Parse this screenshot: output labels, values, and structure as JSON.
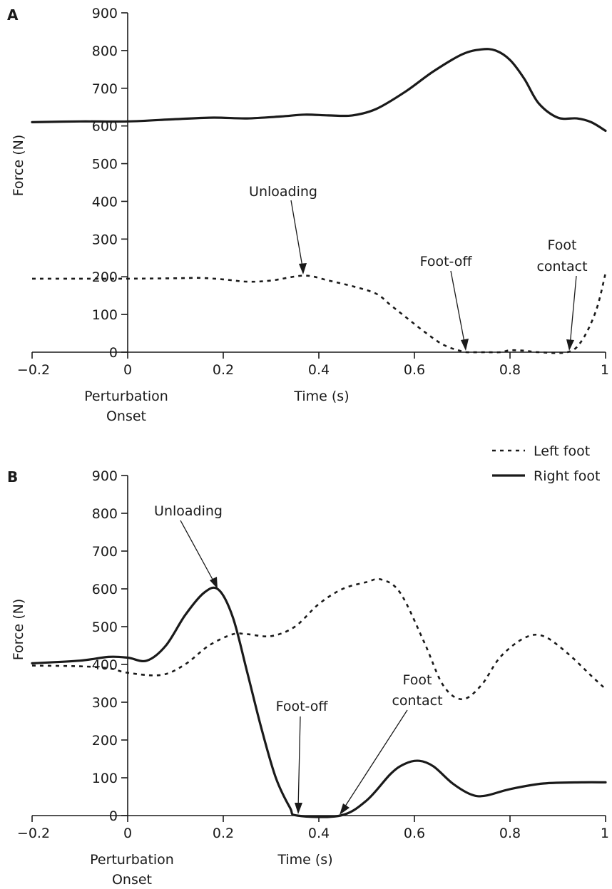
{
  "legend": {
    "left_label": "Left foot",
    "right_label": "Right foot"
  },
  "chart_data": [
    {
      "type": "line",
      "panel_label": "A",
      "xlabel": "Time (s)",
      "ylabel": "Force (N)",
      "onset_label_1": "Perturbation",
      "onset_label_2": "Onset",
      "xlim": [
        -0.2,
        1
      ],
      "ylim": [
        0,
        900
      ],
      "x_ticks": [
        -0.2,
        0,
        0.2,
        0.4,
        0.6,
        0.8,
        1
      ],
      "x_tick_labels": [
        "−0.2",
        "0",
        "0.2",
        "0.4",
        "0.6",
        "0.8",
        "1"
      ],
      "y_ticks": [
        0,
        100,
        200,
        300,
        400,
        500,
        600,
        700,
        800,
        900
      ],
      "y_tick_labels": [
        "0",
        "100",
        "200",
        "300",
        "400",
        "500",
        "600",
        "700",
        "800",
        "900"
      ],
      "series": [
        {
          "name": "Right foot",
          "style": "solid",
          "x": [
            -0.2,
            -0.1,
            0.0,
            0.1,
            0.18,
            0.25,
            0.32,
            0.37,
            0.42,
            0.47,
            0.52,
            0.58,
            0.64,
            0.7,
            0.74,
            0.77,
            0.8,
            0.83,
            0.86,
            0.9,
            0.94,
            0.97,
            1.0
          ],
          "y": [
            610,
            612,
            612,
            618,
            622,
            620,
            625,
            630,
            628,
            628,
            645,
            690,
            745,
            790,
            803,
            800,
            775,
            725,
            660,
            622,
            620,
            610,
            587
          ]
        },
        {
          "name": "Left foot",
          "style": "dashed",
          "x": [
            -0.2,
            -0.1,
            0.0,
            0.1,
            0.15,
            0.2,
            0.25,
            0.3,
            0.37,
            0.42,
            0.47,
            0.52,
            0.55,
            0.58,
            0.62,
            0.66,
            0.7,
            0.72,
            0.75,
            0.78,
            0.8,
            0.83,
            0.86,
            0.92,
            0.95,
            0.98,
            1.0
          ],
          "y": [
            195,
            195,
            195,
            196,
            197,
            193,
            187,
            190,
            203,
            190,
            175,
            155,
            125,
            95,
            55,
            20,
            2,
            0,
            0,
            0,
            5,
            4,
            0,
            0,
            30,
            110,
            210
          ]
        }
      ],
      "annotations": [
        {
          "text": "Unloading",
          "x": 0.37,
          "y": 200
        },
        {
          "text": "Foot-off",
          "x": 0.71,
          "y": 0
        },
        {
          "text": "Foot",
          "x": 0.925,
          "y": 0
        },
        {
          "text": "contact",
          "x": 0.925,
          "y": 0
        }
      ]
    },
    {
      "type": "line",
      "panel_label": "B",
      "xlabel": "Time (s)",
      "ylabel": "Force (N)",
      "onset_label_1": "Perturbation",
      "onset_label_2": "Onset",
      "xlim": [
        -0.2,
        1
      ],
      "ylim": [
        0,
        900
      ],
      "x_ticks": [
        -0.2,
        0,
        0.2,
        0.4,
        0.6,
        0.8,
        1
      ],
      "x_tick_labels": [
        "−0.2",
        "0",
        "0.2",
        "0.4",
        "0.6",
        "0.8",
        "1"
      ],
      "y_ticks": [
        0,
        100,
        200,
        300,
        400,
        500,
        600,
        700,
        800,
        900
      ],
      "y_tick_labels": [
        "0",
        "100",
        "200",
        "300",
        "400",
        "500",
        "600",
        "700",
        "800",
        "900"
      ],
      "series": [
        {
          "name": "Right foot",
          "style": "solid",
          "x": [
            -0.2,
            -0.1,
            -0.04,
            0.0,
            0.04,
            0.08,
            0.12,
            0.16,
            0.19,
            0.22,
            0.25,
            0.28,
            0.31,
            0.34,
            0.355,
            0.445,
            0.5,
            0.55,
            0.58,
            0.61,
            0.64,
            0.68,
            0.72,
            0.75,
            0.8,
            0.87,
            0.95,
            1.0
          ],
          "y": [
            403,
            410,
            420,
            418,
            410,
            450,
            530,
            590,
            598,
            525,
            380,
            230,
            100,
            20,
            0,
            0,
            40,
            110,
            137,
            145,
            130,
            85,
            55,
            53,
            70,
            85,
            88,
            88
          ]
        },
        {
          "name": "Left foot",
          "style": "dashed",
          "x": [
            -0.2,
            -0.1,
            -0.04,
            0.0,
            0.07,
            0.12,
            0.17,
            0.22,
            0.25,
            0.3,
            0.35,
            0.4,
            0.45,
            0.5,
            0.53,
            0.57,
            0.62,
            0.66,
            0.7,
            0.74,
            0.78,
            0.83,
            0.87,
            0.92,
            0.97,
            1.0
          ],
          "y": [
            397,
            395,
            390,
            378,
            372,
            400,
            450,
            480,
            480,
            475,
            500,
            560,
            600,
            618,
            625,
            590,
            460,
            345,
            308,
            345,
            420,
            470,
            475,
            430,
            370,
            335
          ]
        }
      ],
      "annotations": [
        {
          "text": "Unloading",
          "x": 0.19,
          "y": 598
        },
        {
          "text": "Foot-off",
          "x": 0.355,
          "y": 0
        },
        {
          "text": "Foot",
          "x": 0.445,
          "y": 0
        },
        {
          "text": "contact",
          "x": 0.445,
          "y": 0
        }
      ]
    }
  ]
}
